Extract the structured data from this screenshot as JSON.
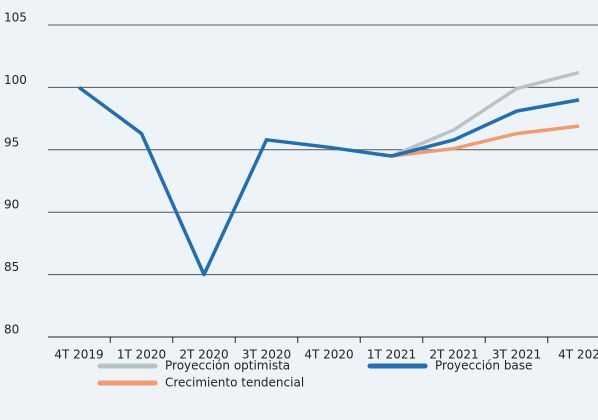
{
  "chart_data": {
    "type": "line",
    "categories": [
      "4T 2019",
      "1T 2020",
      "2T 2020",
      "3T 2020",
      "4T 2020",
      "1T 2021",
      "2T 2021",
      "3T 2021",
      "4T 202"
    ],
    "series": [
      {
        "name": "Proyección optimista",
        "color": "#b9c4c1",
        "values": [
          null,
          null,
          null,
          null,
          null,
          94.5,
          96.6,
          99.9,
          101.2
        ]
      },
      {
        "name": "Crecimiento tendencial",
        "color": "#f29b6c",
        "values": [
          null,
          null,
          null,
          null,
          null,
          94.5,
          95.1,
          96.3,
          96.9
        ]
      },
      {
        "name": "Proyección base",
        "color": "#1f6fb4",
        "values": [
          100,
          96.3,
          85,
          95.8,
          95.2,
          94.5,
          95.8,
          98.1,
          99.0
        ]
      }
    ],
    "ylim": [
      80,
      105
    ],
    "yticks": [
      80,
      85,
      90,
      95,
      100,
      105
    ],
    "grid": true
  }
}
